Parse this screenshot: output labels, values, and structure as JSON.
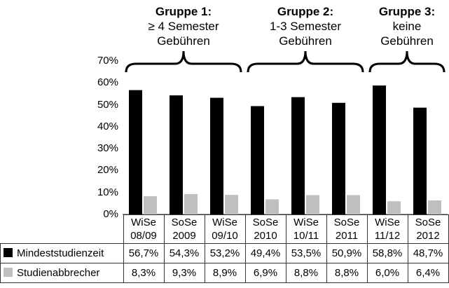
{
  "chart_data": {
    "type": "bar",
    "categories": [
      [
        "WiSe",
        "08/09"
      ],
      [
        "SoSe",
        "2009"
      ],
      [
        "WiSe",
        "09/10"
      ],
      [
        "SoSe",
        "2010"
      ],
      [
        "WiSe",
        "10/11"
      ],
      [
        "SoSe",
        "2011"
      ],
      [
        "WiSe",
        "11/12"
      ],
      [
        "SoSe",
        "2012"
      ]
    ],
    "series": [
      {
        "name": "Mindeststudienzeit",
        "color": "#000000",
        "values": [
          56.7,
          54.3,
          53.2,
          49.4,
          53.5,
          50.9,
          58.8,
          48.7
        ],
        "labels": [
          "56,7%",
          "54,3%",
          "53,2%",
          "49,4%",
          "53,5%",
          "50,9%",
          "58,8%",
          "48,7%"
        ]
      },
      {
        "name": "Studienabbrecher",
        "color": "#bfbfbf",
        "values": [
          8.3,
          9.3,
          8.9,
          6.9,
          8.8,
          8.8,
          6.0,
          6.4
        ],
        "labels": [
          "8,3%",
          "9,3%",
          "8,9%",
          "6,9%",
          "8,8%",
          "8,8%",
          "6,0%",
          "6,4%"
        ]
      }
    ],
    "ylim": [
      0,
      70
    ],
    "yticks": [
      "0%",
      "10%",
      "20%",
      "30%",
      "40%",
      "50%",
      "60%",
      "70%"
    ],
    "grid": false,
    "legend": "data-table-left",
    "groups": [
      {
        "title": "Gruppe 1:",
        "lines": [
          "≥ 4 Semester",
          "Gebühren"
        ],
        "from": 0,
        "to": 2
      },
      {
        "title": "Gruppe 2:",
        "lines": [
          "1-3 Semester",
          "Gebühren"
        ],
        "from": 3,
        "to": 5
      },
      {
        "title": "Gruppe 3:",
        "lines": [
          "keine",
          "Gebühren"
        ],
        "from": 6,
        "to": 7
      }
    ]
  }
}
